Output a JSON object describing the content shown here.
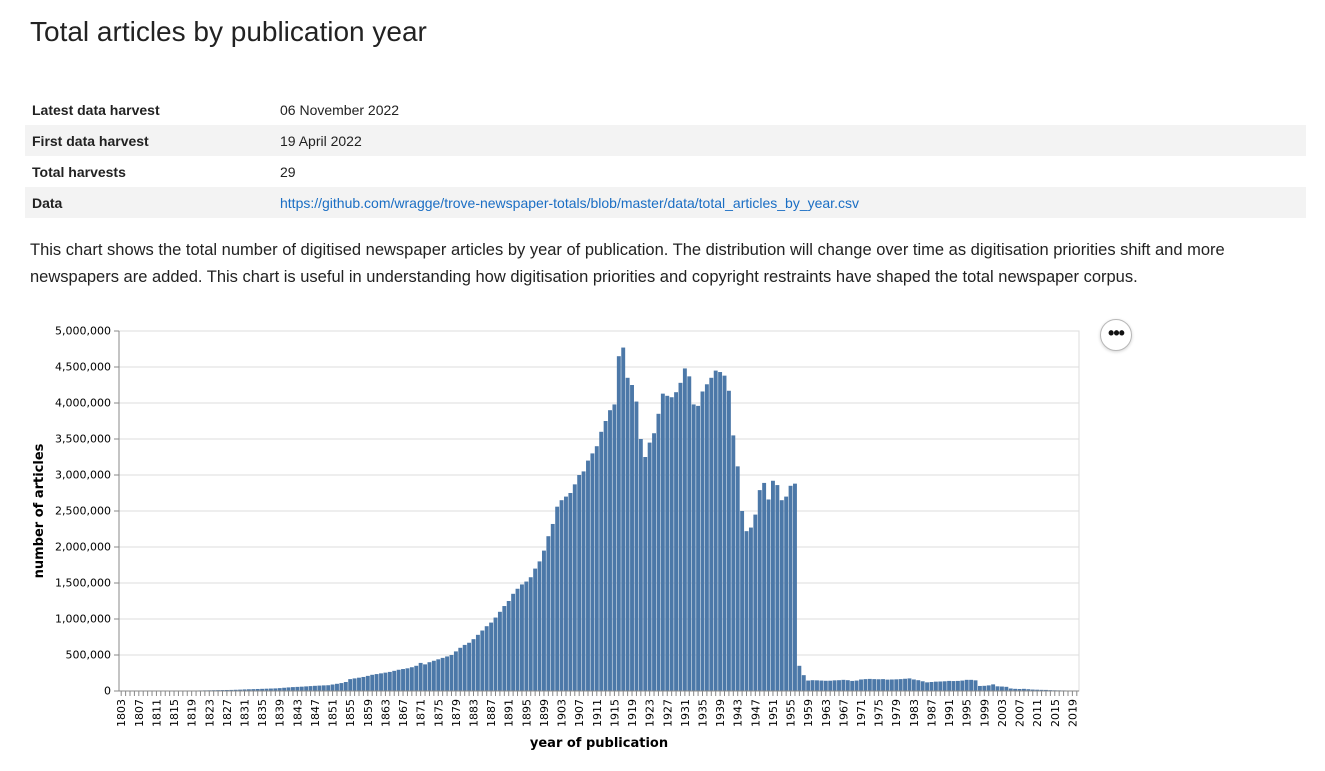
{
  "page": {
    "title": "Total articles by publication year",
    "description": "This chart shows the total number of digitised newspaper articles by year of publication. The distribution will change over time as digitisation priorities shift and more newspapers are added. This chart is useful in understanding how digitisation priorities and copyright restraints have shaped the total newspaper corpus."
  },
  "meta": [
    {
      "key": "Latest data harvest",
      "value": "06 November 2022"
    },
    {
      "key": "First data harvest",
      "value": "19 April 2022"
    },
    {
      "key": "Total harvests",
      "value": "29"
    },
    {
      "key": "Data",
      "value": "https://github.com/wragge/trove-newspaper-totals/blob/master/data/total_articles_by_year.csv"
    }
  ],
  "actions": {
    "more_label": "•••"
  },
  "chart_data": {
    "type": "bar",
    "title": "",
    "xlabel": "year of publication",
    "ylabel": "number of articles",
    "ylim": [
      0,
      5000000
    ],
    "yticks": [
      0,
      500000,
      1000000,
      1500000,
      2000000,
      2500000,
      3000000,
      3500000,
      4000000,
      4500000,
      5000000
    ],
    "ytick_labels": [
      "0",
      "500,000",
      "1,000,000",
      "1,500,000",
      "2,000,000",
      "2,500,000",
      "3,000,000",
      "3,500,000",
      "4,000,000",
      "4,500,000",
      "5,000,000"
    ],
    "xtick_labels": [
      "1803",
      "1807",
      "1811",
      "1815",
      "1819",
      "1823",
      "1827",
      "1831",
      "1835",
      "1839",
      "1843",
      "1847",
      "1851",
      "1855",
      "1859",
      "1863",
      "1867",
      "1871",
      "1875",
      "1879",
      "1883",
      "1887",
      "1891",
      "1895",
      "1899",
      "1903",
      "1907",
      "1911",
      "1915",
      "1919",
      "1923",
      "1927",
      "1931",
      "1935",
      "1939",
      "1943",
      "1947",
      "1951",
      "1955",
      "1959",
      "1963",
      "1967",
      "1971",
      "1975",
      "1979",
      "1983",
      "1987",
      "1991",
      "1995",
      "1999",
      "2003",
      "2007",
      "2011",
      "2015",
      "2019"
    ],
    "color": "#4c78a8",
    "grid": true,
    "categories": [
      1803,
      1804,
      1805,
      1806,
      1807,
      1808,
      1809,
      1810,
      1811,
      1812,
      1813,
      1814,
      1815,
      1816,
      1817,
      1818,
      1819,
      1820,
      1821,
      1822,
      1823,
      1824,
      1825,
      1826,
      1827,
      1828,
      1829,
      1830,
      1831,
      1832,
      1833,
      1834,
      1835,
      1836,
      1837,
      1838,
      1839,
      1840,
      1841,
      1842,
      1843,
      1844,
      1845,
      1846,
      1847,
      1848,
      1849,
      1850,
      1851,
      1852,
      1853,
      1854,
      1855,
      1856,
      1857,
      1858,
      1859,
      1860,
      1861,
      1862,
      1863,
      1864,
      1865,
      1866,
      1867,
      1868,
      1869,
      1870,
      1871,
      1872,
      1873,
      1874,
      1875,
      1876,
      1877,
      1878,
      1879,
      1880,
      1881,
      1882,
      1883,
      1884,
      1885,
      1886,
      1887,
      1888,
      1889,
      1890,
      1891,
      1892,
      1893,
      1894,
      1895,
      1896,
      1897,
      1898,
      1899,
      1900,
      1901,
      1902,
      1903,
      1904,
      1905,
      1906,
      1907,
      1908,
      1909,
      1910,
      1911,
      1912,
      1913,
      1914,
      1915,
      1916,
      1917,
      1918,
      1919,
      1920,
      1921,
      1922,
      1923,
      1924,
      1925,
      1926,
      1927,
      1928,
      1929,
      1930,
      1931,
      1932,
      1933,
      1934,
      1935,
      1936,
      1937,
      1938,
      1939,
      1940,
      1941,
      1942,
      1943,
      1944,
      1945,
      1946,
      1947,
      1948,
      1949,
      1950,
      1951,
      1952,
      1953,
      1954,
      1955,
      1956,
      1957,
      1958,
      1959,
      1960,
      1961,
      1962,
      1963,
      1964,
      1965,
      1966,
      1967,
      1968,
      1969,
      1970,
      1971,
      1972,
      1973,
      1974,
      1975,
      1976,
      1977,
      1978,
      1979,
      1980,
      1981,
      1982,
      1983,
      1984,
      1985,
      1986,
      1987,
      1988,
      1989,
      1990,
      1991,
      1992,
      1993,
      1994,
      1995,
      1996,
      1997,
      1998,
      1999,
      2000,
      2001,
      2002,
      2003,
      2004,
      2005,
      2006,
      2007,
      2008,
      2009,
      2010,
      2011,
      2012,
      2013,
      2014,
      2015,
      2016,
      2017,
      2018,
      2019,
      2020
    ],
    "values": [
      2000,
      2000,
      2000,
      2500,
      2500,
      3000,
      3000,
      3000,
      3500,
      3500,
      4000,
      4000,
      4500,
      5000,
      5000,
      6000,
      6500,
      7000,
      8000,
      9000,
      10000,
      11000,
      12000,
      13000,
      14000,
      15000,
      17000,
      19000,
      22000,
      24000,
      26000,
      28000,
      30000,
      32000,
      34000,
      36000,
      40000,
      45000,
      50000,
      54000,
      57000,
      60000,
      64000,
      68000,
      72000,
      75000,
      78000,
      80000,
      90000,
      100000,
      110000,
      125000,
      165000,
      175000,
      185000,
      195000,
      210000,
      225000,
      235000,
      245000,
      255000,
      265000,
      280000,
      295000,
      305000,
      315000,
      330000,
      350000,
      390000,
      370000,
      400000,
      420000,
      440000,
      460000,
      480000,
      500000,
      550000,
      600000,
      640000,
      670000,
      720000,
      780000,
      840000,
      900000,
      950000,
      1020000,
      1100000,
      1180000,
      1250000,
      1350000,
      1420000,
      1480000,
      1520000,
      1580000,
      1700000,
      1800000,
      1950000,
      2150000,
      2320000,
      2560000,
      2650000,
      2700000,
      2750000,
      2870000,
      3000000,
      3050000,
      3200000,
      3300000,
      3400000,
      3600000,
      3750000,
      3900000,
      3980000,
      4650000,
      4770000,
      4350000,
      4250000,
      4020000,
      3500000,
      3250000,
      3450000,
      3580000,
      3850000,
      4130000,
      4100000,
      4080000,
      4150000,
      4280000,
      4480000,
      4370000,
      3980000,
      3960000,
      4160000,
      4260000,
      4350000,
      4450000,
      4430000,
      4380000,
      4170000,
      3550000,
      3120000,
      2500000,
      2220000,
      2270000,
      2450000,
      2790000,
      2890000,
      2660000,
      2920000,
      2860000,
      2650000,
      2700000,
      2850000,
      2880000,
      350000,
      220000,
      145000,
      150000,
      148000,
      145000,
      142000,
      143000,
      148000,
      150000,
      155000,
      150000,
      140000,
      145000,
      160000,
      165000,
      168000,
      165000,
      163000,
      165000,
      158000,
      160000,
      162000,
      165000,
      170000,
      175000,
      160000,
      150000,
      135000,
      120000,
      125000,
      130000,
      132000,
      135000,
      140000,
      138000,
      140000,
      145000,
      155000,
      155000,
      148000,
      70000,
      72000,
      78000,
      92000,
      65000,
      62000,
      58000,
      35000,
      30000,
      28000,
      30000,
      25000,
      20000,
      18000,
      16000,
      15000,
      12000,
      10000,
      9000,
      8000,
      7000,
      6000,
      5000
    ]
  }
}
